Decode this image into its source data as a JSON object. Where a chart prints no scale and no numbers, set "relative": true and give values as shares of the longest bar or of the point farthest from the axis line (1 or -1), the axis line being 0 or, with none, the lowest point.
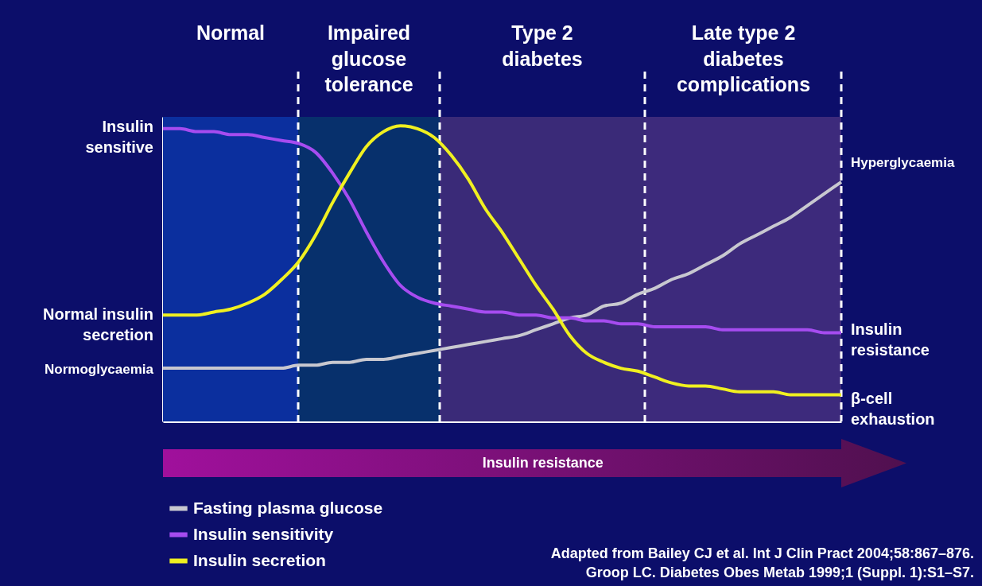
{
  "chart_data": {
    "type": "line",
    "relative": true,
    "categories": [
      null,
      null,
      null,
      null,
      null,
      null,
      null,
      null,
      null,
      null,
      null,
      null,
      null,
      null,
      null,
      null,
      null,
      null,
      null,
      null,
      null,
      null,
      null,
      null,
      null,
      null,
      null,
      null,
      null,
      null,
      null,
      null,
      null,
      null,
      null,
      null,
      null,
      null,
      null,
      null,
      null
    ],
    "series": [
      {
        "name": "Fasting plasma glucose",
        "color": "#c8c8d0",
        "values": [
          0.18,
          0.18,
          0.18,
          0.18,
          0.18,
          0.18,
          0.18,
          0.18,
          0.19,
          0.19,
          0.2,
          0.2,
          0.21,
          0.21,
          0.22,
          0.23,
          0.24,
          0.25,
          0.26,
          0.27,
          0.28,
          0.29,
          0.31,
          0.33,
          0.35,
          0.36,
          0.39,
          0.4,
          0.43,
          0.45,
          0.48,
          0.5,
          0.53,
          0.56,
          0.6,
          0.63,
          0.66,
          0.69,
          0.73,
          0.77,
          0.81
        ]
      },
      {
        "name": "Insulin sensitivity",
        "color": "#a64cf0",
        "values": [
          0.99,
          0.99,
          0.98,
          0.98,
          0.97,
          0.97,
          0.96,
          0.95,
          0.94,
          0.91,
          0.84,
          0.75,
          0.64,
          0.54,
          0.46,
          0.42,
          0.4,
          0.39,
          0.38,
          0.37,
          0.37,
          0.36,
          0.36,
          0.35,
          0.35,
          0.34,
          0.34,
          0.33,
          0.33,
          0.32,
          0.32,
          0.32,
          0.32,
          0.31,
          0.31,
          0.31,
          0.31,
          0.31,
          0.31,
          0.3,
          0.3
        ]
      },
      {
        "name": "Insulin secretion",
        "color": "#f0f020",
        "values": [
          0.36,
          0.36,
          0.36,
          0.37,
          0.38,
          0.4,
          0.43,
          0.48,
          0.54,
          0.63,
          0.74,
          0.84,
          0.93,
          0.98,
          1.0,
          0.99,
          0.96,
          0.9,
          0.82,
          0.72,
          0.64,
          0.55,
          0.46,
          0.38,
          0.29,
          0.23,
          0.2,
          0.18,
          0.17,
          0.15,
          0.13,
          0.12,
          0.12,
          0.11,
          0.1,
          0.1,
          0.1,
          0.09,
          0.09,
          0.09,
          0.09
        ]
      }
    ],
    "annotations": [
      "Normal",
      "Impaired\nglucose\ntolerance",
      "Type 2\ndiabetes",
      "Late type 2\ndiabetes\ncomplications",
      "Insulin\nsensitive",
      "Normal insulin\nsecretion",
      "Normoglycaemia",
      "Hyperglycaemia",
      "Insulin\nresistance",
      "β-cell\nexhaustion",
      "Insulin resistance",
      "Adapted from Bailey CJ et al. Int J Clin Pract 2004;58:867–876.",
      "Groop LC. Diabetes Obes Metab 1999;1 (Suppl. 1):S1–S7."
    ],
    "legend": "bottom left",
    "grid": false,
    "tick_labels": false
  }
}
